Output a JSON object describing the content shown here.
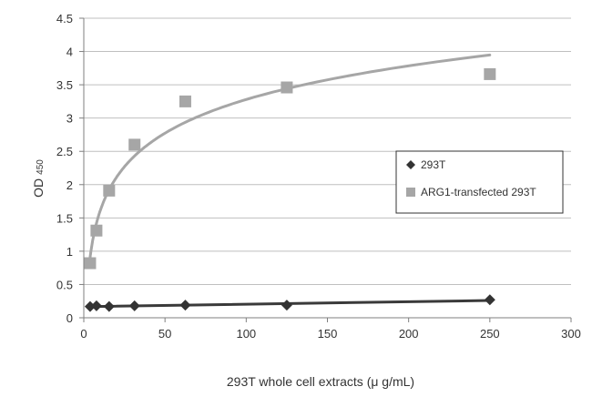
{
  "chart_data": {
    "type": "scatter",
    "title": "",
    "xlabel": "293T whole cell extracts (μ g/mL)",
    "ylabel": "OD",
    "ylabel_subscript": "450",
    "xlim": [
      0,
      300
    ],
    "ylim": [
      0,
      4.5
    ],
    "x_ticks": [
      0,
      50,
      100,
      150,
      200,
      250,
      300
    ],
    "y_ticks": [
      0,
      0.5,
      1,
      1.5,
      2,
      2.5,
      3,
      3.5,
      4,
      4.5
    ],
    "y_tick_labels": [
      "0",
      "0.5",
      "1",
      "1.5",
      "2",
      "2.5",
      "3",
      "3.5",
      "4",
      "4.5"
    ],
    "grid": "horizontal",
    "legend_position": "right",
    "series": [
      {
        "name": "293T",
        "marker": "diamond",
        "color": "#333333",
        "trendline": "linear",
        "trendline_color": "#3a3a3a",
        "x": [
          3.9,
          7.8,
          15.6,
          31.25,
          62.5,
          125,
          250
        ],
        "y": [
          0.17,
          0.18,
          0.17,
          0.18,
          0.19,
          0.19,
          0.27
        ]
      },
      {
        "name": "ARG1-transfected 293T",
        "marker": "square",
        "color": "#a6a6a6",
        "trendline": "logarithmic",
        "trendline_color": "#a6a6a6",
        "x": [
          3.9,
          7.8,
          15.6,
          31.25,
          62.5,
          125,
          250
        ],
        "y": [
          0.82,
          1.31,
          1.91,
          2.6,
          3.25,
          3.46,
          3.66
        ]
      }
    ]
  }
}
